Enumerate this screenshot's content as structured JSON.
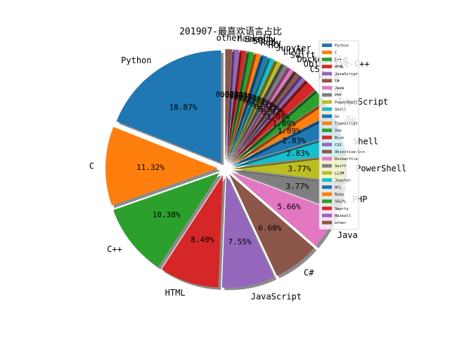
{
  "chart_data": {
    "type": "pie",
    "title": "201907-最喜欢语言占比",
    "slices": [
      {
        "label": "Python",
        "value": 18.87,
        "color": "#1f77b4"
      },
      {
        "label": "C",
        "value": 11.32,
        "color": "#ff7f0e"
      },
      {
        "label": "C++",
        "value": 10.38,
        "color": "#2ca02c"
      },
      {
        "label": "HTML",
        "value": 8.49,
        "color": "#d62728"
      },
      {
        "label": "JavaScript",
        "value": 7.55,
        "color": "#9467bd"
      },
      {
        "label": "C#",
        "value": 6.6,
        "color": "#8c564b"
      },
      {
        "label": "Java",
        "value": 5.66,
        "color": "#e377c2"
      },
      {
        "label": "PHP",
        "value": 3.77,
        "color": "#7f7f7f"
      },
      {
        "label": "PowerShell",
        "value": 3.77,
        "color": "#bcbd22"
      },
      {
        "label": "Shell",
        "value": 2.83,
        "color": "#17becf"
      },
      {
        "label": "Go",
        "value": 2.83,
        "color": "#1f77b4"
      },
      {
        "label": "TypeScript",
        "value": 1.89,
        "color": "#ff7f0e"
      },
      {
        "label": "Vue",
        "value": 1.89,
        "color": "#2ca02c"
      },
      {
        "label": "Rich",
        "value": 1.89,
        "color": "#d62728"
      },
      {
        "label": "CSS",
        "value": 0.97,
        "color": "#9467bd"
      },
      {
        "label": "Objective-C++",
        "value": 0.97,
        "color": "#8c564b"
      },
      {
        "label": "Dockerfile",
        "value": 0.97,
        "color": "#e377c2"
      },
      {
        "label": "Swift",
        "value": 0.97,
        "color": "#7f7f7f"
      },
      {
        "label": "LLVM",
        "value": 0.97,
        "color": "#bcbd22"
      },
      {
        "label": "Jupyter",
        "value": 0.97,
        "color": "#17becf"
      },
      {
        "label": "HCL",
        "value": 0.97,
        "color": "#1f77b4"
      },
      {
        "label": "Ruby",
        "value": 0.97,
        "color": "#ff7f0e"
      },
      {
        "label": "SGLPL",
        "value": 0.97,
        "color": "#2ca02c"
      },
      {
        "label": "Smarty",
        "value": 0.97,
        "color": "#d62728"
      },
      {
        "label": "Haskell",
        "value": 0.97,
        "color": "#9467bd"
      },
      {
        "label": "other",
        "value": 0.97,
        "color": "#8c564b"
      }
    ],
    "legend_position": "right",
    "shadow": true,
    "exploded": true
  }
}
